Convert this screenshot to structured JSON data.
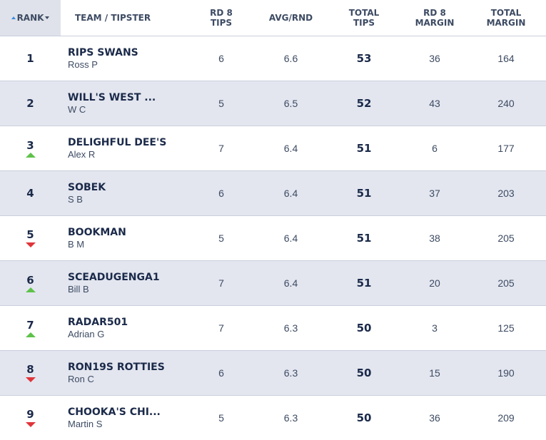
{
  "headers": {
    "rank": "RANK",
    "team": "TEAM / TIPSTER",
    "rd_tips": [
      "RD 8",
      "TIPS"
    ],
    "avg": "AVG/RND",
    "total_tips": [
      "TOTAL",
      "TIPS"
    ],
    "rd_margin": [
      "RD 8",
      "MARGIN"
    ],
    "total_margin": [
      "TOTAL",
      "MARGIN"
    ]
  },
  "colors": {
    "up": "#5ec24a",
    "down": "#e0353a",
    "rank_header_bg": "#dfe2ea",
    "alt_row_bg": "#e3e6ef"
  },
  "rows": [
    {
      "rank": "1",
      "movement": "none",
      "team": "RIPS SWANS",
      "tipster": "Ross P",
      "rd_tips": "6",
      "avg": "6.6",
      "total_tips": "53",
      "rd_margin": "36",
      "total_margin": "164"
    },
    {
      "rank": "2",
      "movement": "none",
      "team": "WILL'S WEST ...",
      "tipster": "W C",
      "rd_tips": "5",
      "avg": "6.5",
      "total_tips": "52",
      "rd_margin": "43",
      "total_margin": "240"
    },
    {
      "rank": "3",
      "movement": "up",
      "team": "DELIGHFUL DEE'S",
      "tipster": "Alex R",
      "rd_tips": "7",
      "avg": "6.4",
      "total_tips": "51",
      "rd_margin": "6",
      "total_margin": "177"
    },
    {
      "rank": "4",
      "movement": "none",
      "team": "SOBEK",
      "tipster": "S B",
      "rd_tips": "6",
      "avg": "6.4",
      "total_tips": "51",
      "rd_margin": "37",
      "total_margin": "203"
    },
    {
      "rank": "5",
      "movement": "down",
      "team": "BOOKMAN",
      "tipster": "B M",
      "rd_tips": "5",
      "avg": "6.4",
      "total_tips": "51",
      "rd_margin": "38",
      "total_margin": "205"
    },
    {
      "rank": "6",
      "movement": "up",
      "team": "SCEADUGENGA1",
      "tipster": "Bill B",
      "rd_tips": "7",
      "avg": "6.4",
      "total_tips": "51",
      "rd_margin": "20",
      "total_margin": "205"
    },
    {
      "rank": "7",
      "movement": "up",
      "team": "RADAR501",
      "tipster": "Adrian G",
      "rd_tips": "7",
      "avg": "6.3",
      "total_tips": "50",
      "rd_margin": "3",
      "total_margin": "125"
    },
    {
      "rank": "8",
      "movement": "down",
      "team": "RON19S ROTTIES",
      "tipster": "Ron C",
      "rd_tips": "6",
      "avg": "6.3",
      "total_tips": "50",
      "rd_margin": "15",
      "total_margin": "190"
    },
    {
      "rank": "9",
      "movement": "down",
      "team": "CHOOKA'S CHI...",
      "tipster": "Martin S",
      "rd_tips": "5",
      "avg": "6.3",
      "total_tips": "50",
      "rd_margin": "36",
      "total_margin": "209"
    }
  ]
}
